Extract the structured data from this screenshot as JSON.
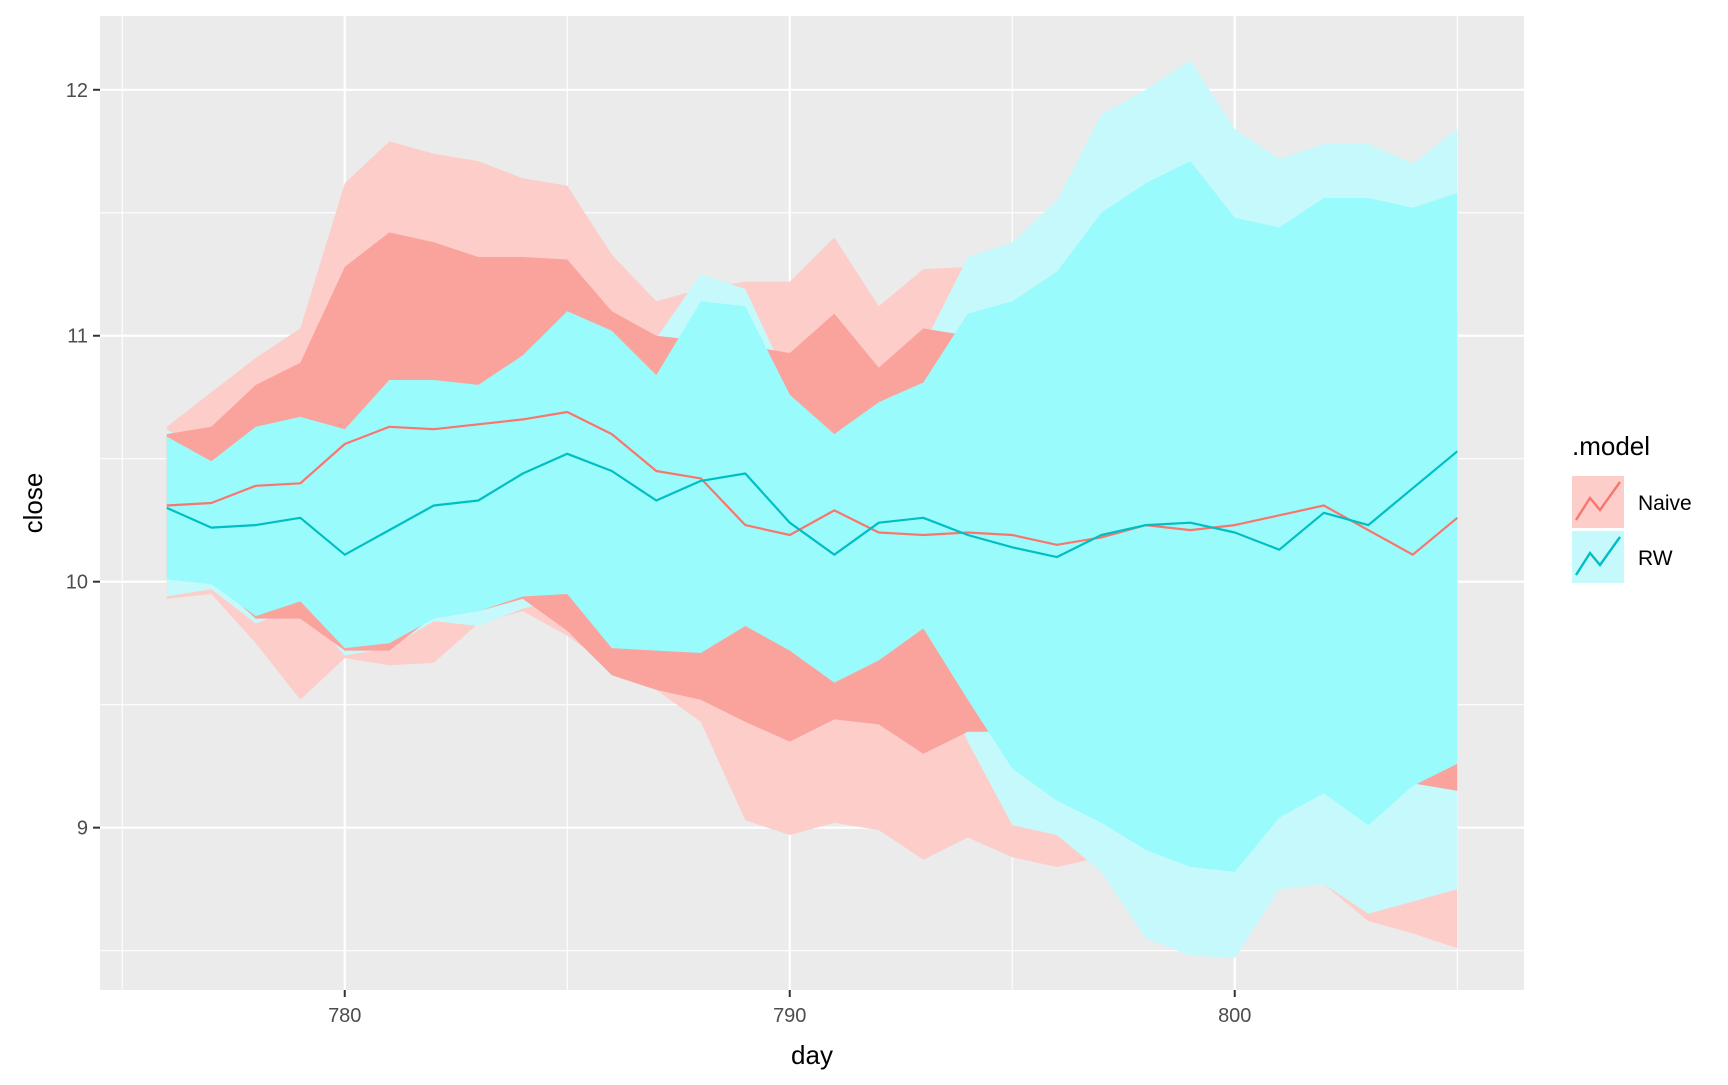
{
  "chart_data": {
    "type": "line",
    "xlabel": "day",
    "ylabel": "close",
    "xlim": [
      774.5,
      806.5
    ],
    "ylim": [
      8.34,
      12.3
    ],
    "x_ticks": [
      780,
      790,
      800
    ],
    "y_ticks": [
      9,
      10,
      11,
      12
    ],
    "grid": true,
    "legend": {
      "title": ".model",
      "placement": "right",
      "entries": [
        "Naive",
        "RW"
      ]
    },
    "x": [
      776,
      777,
      778,
      779,
      780,
      781,
      782,
      783,
      784,
      785,
      786,
      787,
      788,
      789,
      790,
      791,
      792,
      793,
      794,
      795,
      796,
      797,
      798,
      799,
      800,
      801,
      802,
      803,
      804,
      805
    ],
    "series": [
      {
        "name": "Naive",
        "color": "#F8766D",
        "line_color": "#F8766D",
        "band_color_95": "#FDCDCA",
        "band_color_80": "#FAA39D",
        "values": [
          10.31,
          10.32,
          10.39,
          10.4,
          10.56,
          10.63,
          10.62,
          10.64,
          10.66,
          10.69,
          10.6,
          10.45,
          10.42,
          10.23,
          10.19,
          10.29,
          10.2,
          10.19,
          10.2,
          10.19,
          10.15,
          10.18,
          10.23,
          10.21,
          10.23,
          10.27,
          10.31,
          10.21,
          10.11,
          10.26
        ],
        "lower_80": [
          10.02,
          10.01,
          9.85,
          9.85,
          9.72,
          9.72,
          9.86,
          9.88,
          9.93,
          9.8,
          9.62,
          9.56,
          9.52,
          9.43,
          9.35,
          9.44,
          9.42,
          9.3,
          9.39,
          9.39,
          9.37,
          9.33,
          9.31,
          9.29,
          9.27,
          9.25,
          9.23,
          9.2,
          9.18,
          9.15
        ],
        "upper_80": [
          10.6,
          10.63,
          10.8,
          10.89,
          11.28,
          11.42,
          11.38,
          11.32,
          11.32,
          11.31,
          11.1,
          11.0,
          10.98,
          10.96,
          10.93,
          11.09,
          10.87,
          11.03,
          11.0,
          11.0,
          10.95,
          10.95,
          10.98,
          10.97,
          11.0,
          11.05,
          11.1,
          11.08,
          11.05,
          11.1
        ],
        "lower_95": [
          9.93,
          9.95,
          9.75,
          9.52,
          9.69,
          9.66,
          9.67,
          9.83,
          9.88,
          9.78,
          9.65,
          9.56,
          9.43,
          9.03,
          8.97,
          9.02,
          8.99,
          8.87,
          8.96,
          8.88,
          8.84,
          8.88,
          8.85,
          8.8,
          8.78,
          8.76,
          8.77,
          8.62,
          8.57,
          8.51
        ],
        "upper_95": [
          10.63,
          10.77,
          10.91,
          11.03,
          11.62,
          11.79,
          11.74,
          11.71,
          11.64,
          11.61,
          11.33,
          11.14,
          11.19,
          11.22,
          11.22,
          11.4,
          11.12,
          11.27,
          11.28,
          11.26,
          11.25,
          11.28,
          11.3,
          11.35,
          11.4,
          11.45,
          11.5,
          11.5,
          11.55,
          11.6
        ]
      },
      {
        "name": "RW",
        "color": "#00BFC4",
        "line_color": "#00BFC4",
        "band_color_95": "#C6F9FB",
        "band_color_80": "#9AFBFC",
        "values": [
          10.3,
          10.22,
          10.23,
          10.26,
          10.11,
          10.21,
          10.31,
          10.33,
          10.44,
          10.52,
          10.45,
          10.33,
          10.41,
          10.44,
          10.24,
          10.11,
          10.24,
          10.26,
          10.19,
          10.14,
          10.1,
          10.19,
          10.23,
          10.24,
          10.2,
          10.13,
          10.28,
          10.23,
          10.38,
          10.53
        ],
        "lower_80": [
          10.01,
          9.99,
          9.86,
          9.92,
          9.73,
          9.75,
          9.85,
          9.88,
          9.94,
          9.95,
          9.73,
          9.72,
          9.71,
          9.82,
          9.72,
          9.59,
          9.68,
          9.81,
          9.52,
          9.24,
          9.11,
          9.02,
          8.91,
          8.84,
          8.82,
          9.04,
          9.14,
          9.01,
          9.17,
          9.26
        ],
        "upper_80": [
          10.59,
          10.49,
          10.63,
          10.67,
          10.62,
          10.82,
          10.82,
          10.8,
          10.92,
          11.1,
          11.02,
          10.84,
          11.14,
          11.12,
          10.76,
          10.6,
          10.73,
          10.81,
          11.09,
          11.14,
          11.26,
          11.5,
          11.62,
          11.71,
          11.48,
          11.44,
          11.56,
          11.56,
          11.52,
          11.58
        ],
        "lower_95": [
          9.94,
          9.97,
          9.83,
          9.9,
          9.7,
          9.73,
          9.84,
          9.82,
          9.89,
          9.94,
          9.62,
          9.57,
          9.52,
          9.74,
          9.62,
          9.48,
          9.59,
          9.78,
          9.35,
          9.01,
          8.97,
          8.82,
          8.55,
          8.48,
          8.47,
          8.75,
          8.77,
          8.65,
          8.7,
          8.75
        ],
        "upper_95": [
          10.62,
          10.51,
          10.68,
          10.72,
          10.64,
          10.84,
          10.83,
          10.9,
          11.02,
          11.26,
          11.09,
          10.99,
          11.25,
          11.19,
          10.8,
          10.64,
          10.77,
          10.96,
          11.32,
          11.38,
          11.55,
          11.9,
          12.0,
          12.12,
          11.84,
          11.72,
          11.78,
          11.78,
          11.7,
          11.84
        ]
      }
    ]
  }
}
